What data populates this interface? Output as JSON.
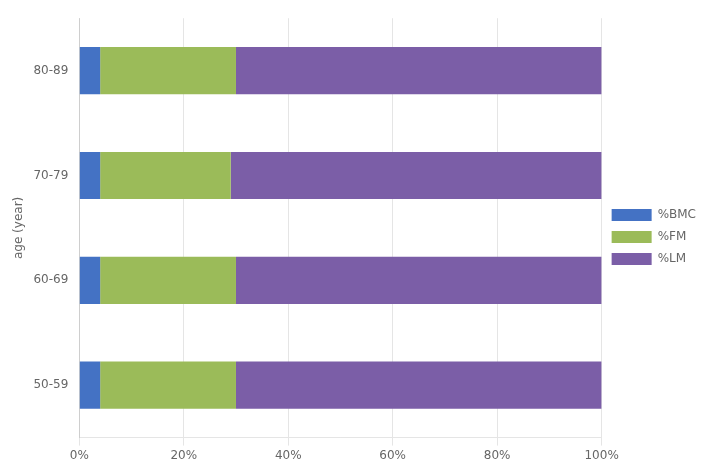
{
  "chart_data": {
    "type": "bar",
    "orientation": "horizontal",
    "stacked": true,
    "ylabel": "age (year)",
    "categories": [
      "50-59",
      "60-69",
      "70-79",
      "80-89"
    ],
    "series": [
      {
        "name": "%BMC",
        "color": "#4472C4",
        "values": [
          4.0,
          4.0,
          4.0,
          4.0
        ]
      },
      {
        "name": "%FM",
        "color": "#9BBB59",
        "values": [
          26.0,
          26.0,
          25.0,
          26.0
        ]
      },
      {
        "name": "%LM",
        "color": "#7B5EA7",
        "values": [
          70.0,
          70.0,
          71.0,
          70.0
        ]
      }
    ],
    "xlim": [
      0,
      100
    ],
    "xticks": [
      {
        "value": 0,
        "label": "0%"
      },
      {
        "value": 20,
        "label": "20%"
      },
      {
        "value": 40,
        "label": "40%"
      },
      {
        "value": 60,
        "label": "60%"
      },
      {
        "value": 80,
        "label": "80%"
      },
      {
        "value": 100,
        "label": "100%"
      }
    ],
    "grid": true,
    "legend": "right"
  }
}
